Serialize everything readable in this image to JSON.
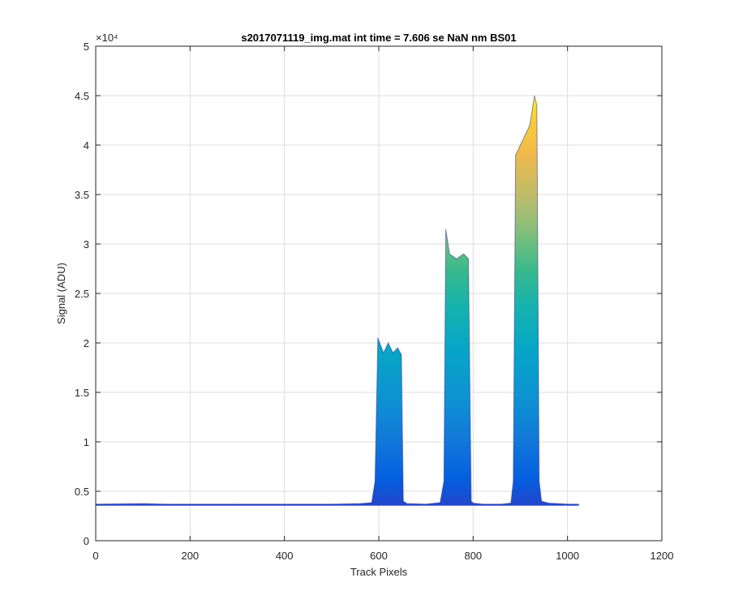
{
  "chart_data": {
    "type": "area",
    "title": "s2017071119_img.mat int time = 7.606 se  NaN nm BS01",
    "xlabel": "Track Pixels",
    "ylabel": "Signal (ADU)",
    "xlim": [
      0,
      1200
    ],
    "ylim": [
      0,
      50000
    ],
    "xticks": [
      "0",
      "200",
      "400",
      "600",
      "800",
      "1000",
      "1200"
    ],
    "yticks": [
      "0",
      "0.5",
      "1",
      "1.5",
      "2",
      "2.5",
      "3",
      "3.5",
      "4",
      "4.5",
      "5"
    ],
    "y_exponent_label": "×10⁴",
    "grid": true,
    "colormap": "parula",
    "x": [
      0,
      100,
      150,
      200,
      300,
      400,
      500,
      560,
      585,
      592,
      598,
      610,
      620,
      630,
      640,
      648,
      652,
      660,
      700,
      730,
      738,
      742,
      750,
      765,
      780,
      790,
      796,
      800,
      820,
      860,
      880,
      885,
      890,
      900,
      910,
      920,
      930,
      935,
      940,
      945,
      960,
      1000,
      1024
    ],
    "values": [
      3700,
      3750,
      3700,
      3700,
      3700,
      3700,
      3700,
      3750,
      3850,
      6000,
      20500,
      19000,
      20000,
      19000,
      19500,
      18800,
      4000,
      3750,
      3700,
      3850,
      6000,
      31500,
      29000,
      28500,
      29000,
      28500,
      4000,
      3800,
      3700,
      3700,
      3800,
      6000,
      39000,
      40000,
      41000,
      42000,
      45000,
      44000,
      6000,
      4000,
      3800,
      3700,
      3700
    ]
  }
}
